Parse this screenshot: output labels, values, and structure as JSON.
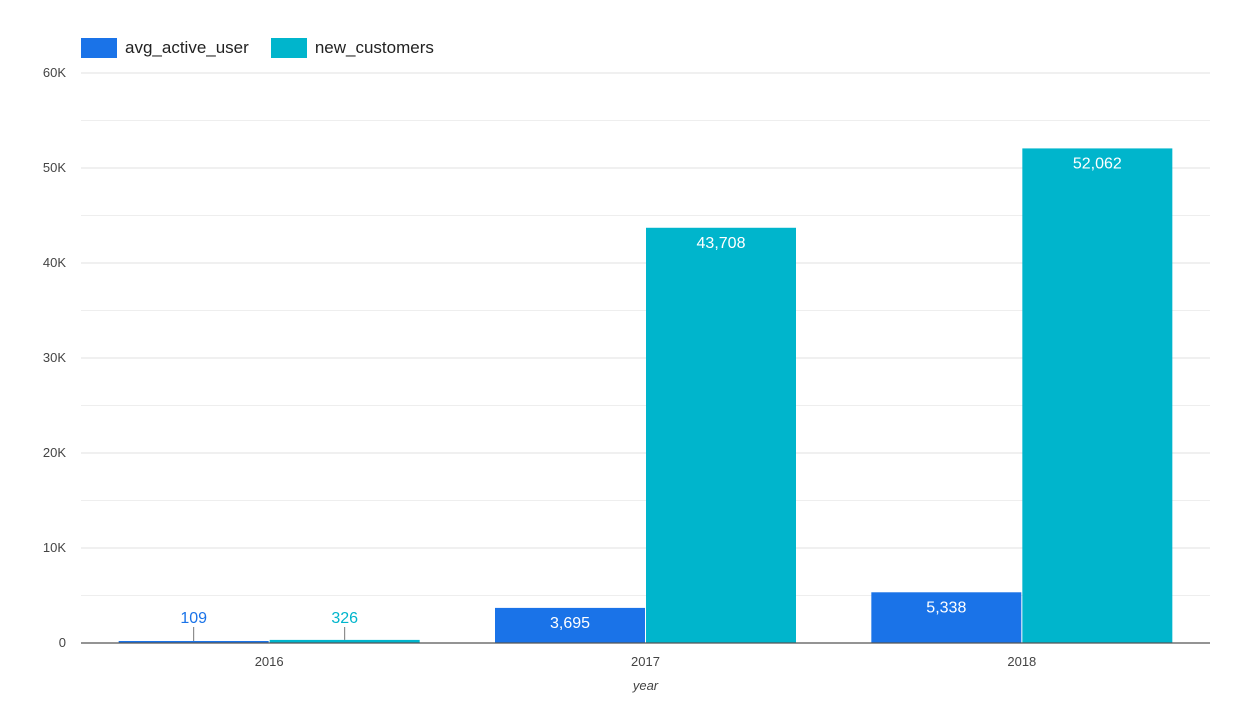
{
  "chart_data": {
    "type": "bar",
    "xlabel": "year",
    "ylabel": "",
    "categories": [
      "2016",
      "2017",
      "2018"
    ],
    "series": [
      {
        "name": "avg_active_user",
        "color": "#1a73e8",
        "values": [
          109,
          3695,
          5338
        ],
        "value_labels": [
          "109",
          "3,695",
          "5,338"
        ]
      },
      {
        "name": "new_customers",
        "color": "#00b5cc",
        "values": [
          326,
          43708,
          52062
        ],
        "value_labels": [
          "326",
          "43,708",
          "52,062"
        ]
      }
    ],
    "ylim": [
      0,
      60000
    ],
    "y_ticks": [
      0,
      10000,
      20000,
      30000,
      40000,
      50000,
      60000
    ],
    "y_tick_labels": [
      "0",
      "10K",
      "20K",
      "30K",
      "40K",
      "50K",
      "60K"
    ],
    "grid": true,
    "legend_position": "top-left"
  }
}
